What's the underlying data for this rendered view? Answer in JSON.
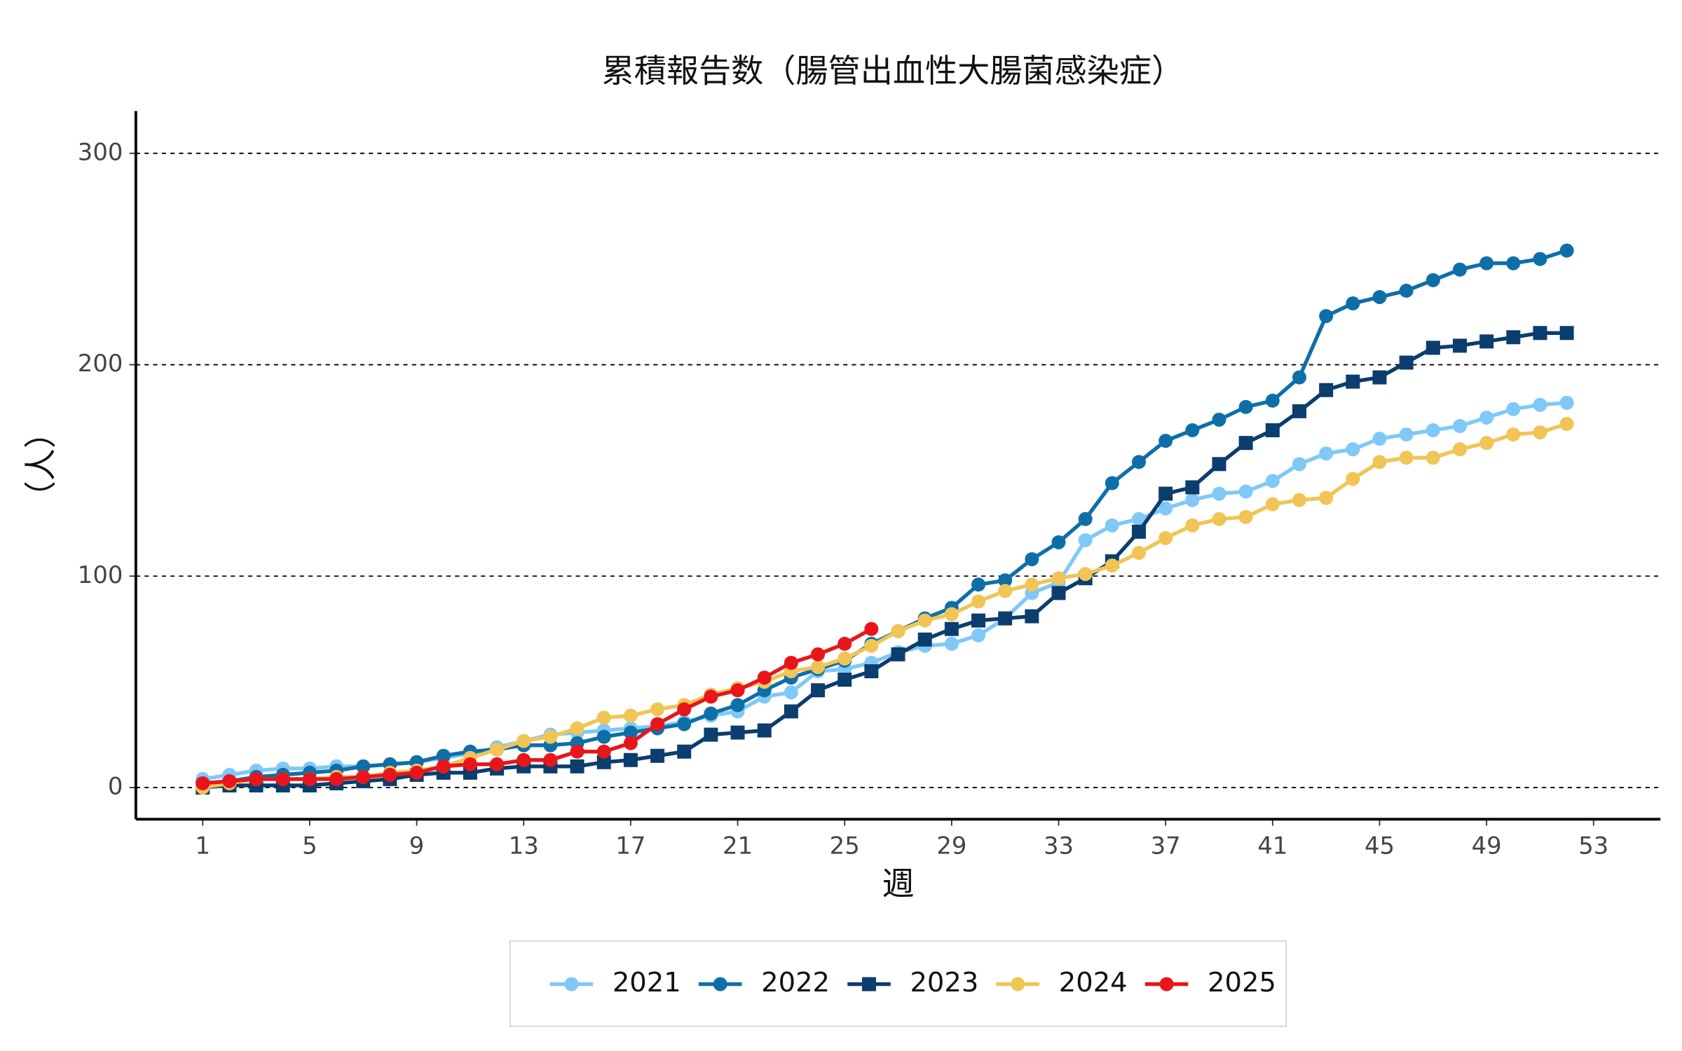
{
  "chart_data": {
    "type": "line",
    "title": "累積報告数（腸管出血性大腸菌感染症）",
    "xlabel": "週",
    "ylabel": "（人）",
    "x": [
      1,
      2,
      3,
      4,
      5,
      6,
      7,
      8,
      9,
      10,
      11,
      12,
      13,
      14,
      15,
      16,
      17,
      18,
      19,
      20,
      21,
      22,
      23,
      24,
      25,
      26,
      27,
      28,
      29,
      30,
      31,
      32,
      33,
      34,
      35,
      36,
      37,
      38,
      39,
      40,
      41,
      42,
      43,
      44,
      45,
      46,
      47,
      48,
      49,
      50,
      51,
      52
    ],
    "series": [
      {
        "name": "2021",
        "color": "#7fc8f8",
        "marker": "circle",
        "values": [
          4,
          6,
          8,
          9,
          9,
          10,
          10,
          11,
          12,
          14,
          16,
          19,
          22,
          25,
          26,
          27,
          28,
          29,
          31,
          34,
          36,
          43,
          45,
          55,
          56,
          59,
          64,
          67,
          68,
          72,
          80,
          92,
          97,
          117,
          124,
          127,
          132,
          136,
          139,
          140,
          145,
          153,
          158,
          160,
          165,
          167,
          169,
          171,
          175,
          179,
          181,
          182
        ]
      },
      {
        "name": "2022",
        "color": "#0e6fa8",
        "marker": "circle",
        "values": [
          2,
          3,
          5,
          6,
          7,
          8,
          10,
          11,
          12,
          15,
          17,
          18,
          20,
          20,
          21,
          24,
          26,
          28,
          30,
          35,
          39,
          46,
          52,
          56,
          60,
          68,
          74,
          80,
          85,
          96,
          98,
          108,
          116,
          127,
          144,
          154,
          164,
          169,
          174,
          180,
          183,
          194,
          223,
          229,
          232,
          235,
          240,
          245,
          248,
          248,
          250,
          254
        ]
      },
      {
        "name": "2023",
        "color": "#0b3d6e",
        "marker": "square",
        "values": [
          0,
          1,
          1,
          1,
          1,
          2,
          3,
          4,
          6,
          7,
          7,
          9,
          10,
          10,
          10,
          12,
          13,
          15,
          17,
          25,
          26,
          27,
          36,
          46,
          51,
          55,
          63,
          70,
          75,
          79,
          80,
          81,
          92,
          99,
          107,
          121,
          139,
          142,
          153,
          163,
          169,
          178,
          188,
          192,
          194,
          201,
          208,
          209,
          211,
          213,
          215,
          215
        ]
      },
      {
        "name": "2024",
        "color": "#f0c556",
        "marker": "circle",
        "values": [
          0,
          2,
          4,
          4,
          4,
          5,
          5,
          7,
          8,
          10,
          14,
          18,
          22,
          24,
          28,
          33,
          34,
          37,
          39,
          44,
          47,
          50,
          55,
          57,
          61,
          67,
          74,
          79,
          82,
          88,
          93,
          96,
          99,
          101,
          105,
          111,
          118,
          124,
          127,
          128,
          134,
          136,
          137,
          146,
          154,
          156,
          156,
          160,
          163,
          167,
          168,
          172
        ]
      },
      {
        "name": "2025",
        "color": "#e8161b",
        "marker": "circle",
        "values": [
          2,
          3,
          4,
          4,
          4,
          4,
          5,
          6,
          7,
          10,
          11,
          11,
          13,
          13,
          17,
          17,
          21,
          30,
          37,
          43,
          46,
          52,
          59,
          63,
          68,
          75,
          null,
          null,
          null,
          null,
          null,
          null,
          null,
          null,
          null,
          null,
          null,
          null,
          null,
          null,
          null,
          null,
          null,
          null,
          null,
          null,
          null,
          null,
          null,
          null,
          null,
          null
        ]
      }
    ],
    "xlim": [
      -1.5,
      55.5
    ],
    "xticks": [
      1,
      5,
      9,
      13,
      17,
      21,
      25,
      29,
      33,
      37,
      41,
      45,
      49,
      53
    ],
    "ylim": [
      -15,
      320
    ],
    "yticks": [
      0,
      100,
      200,
      300
    ],
    "grid": true,
    "legend": "bottom"
  }
}
